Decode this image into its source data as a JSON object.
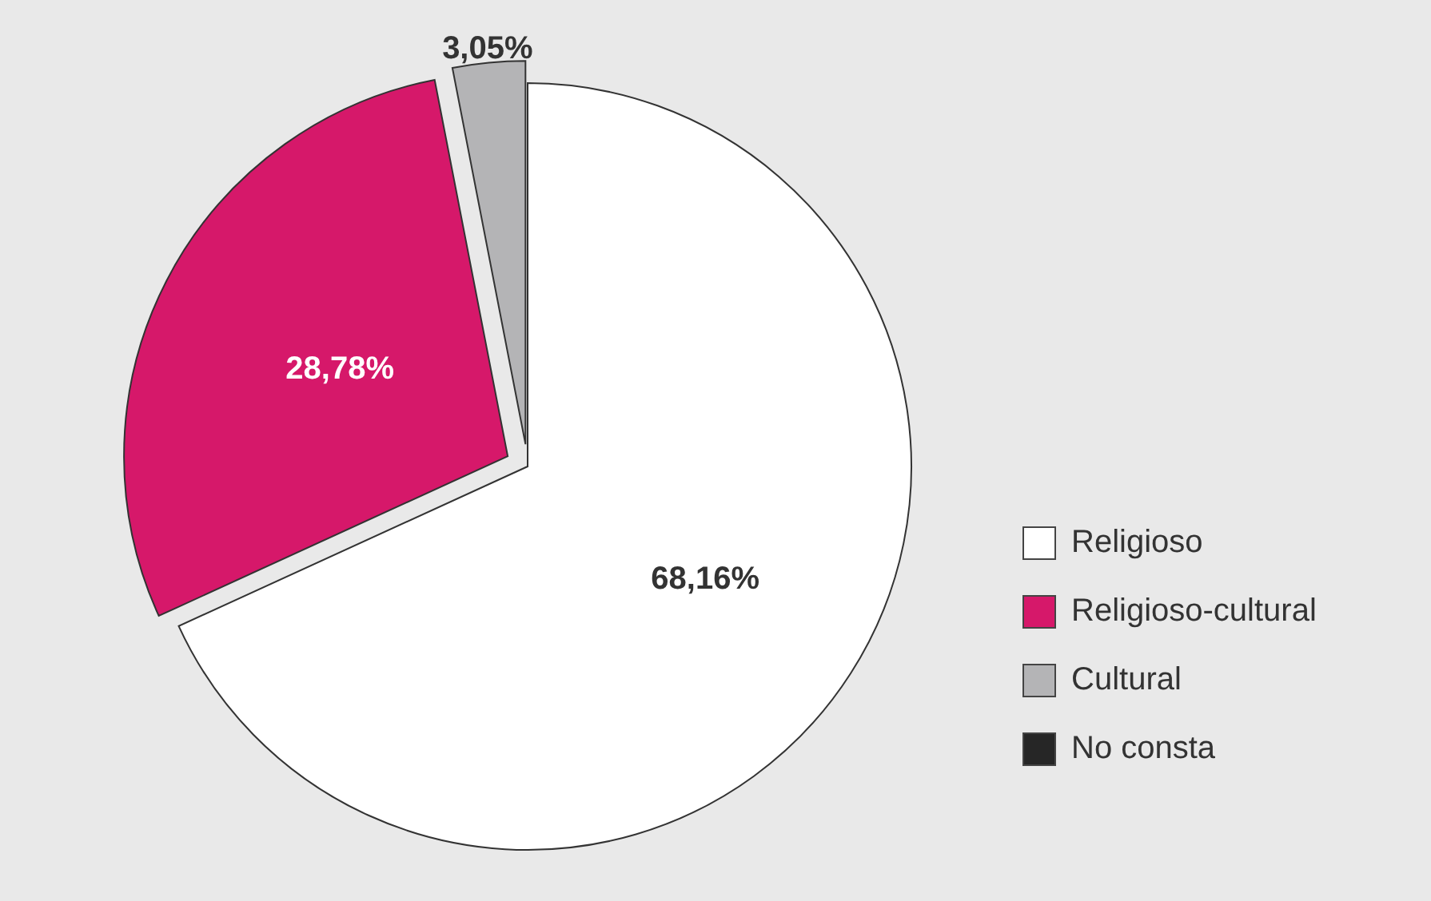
{
  "chart_data": {
    "type": "pie",
    "categories": [
      "Religioso",
      "Religioso-cultural",
      "Cultural",
      "No consta"
    ],
    "values": [
      68.16,
      28.78,
      3.05,
      0
    ],
    "colors": [
      "#ffffff",
      "#d6186a",
      "#b4b4b6",
      "#262626"
    ],
    "value_labels": [
      "68,16%",
      "28,78%",
      "3,05%",
      null
    ],
    "legend": "bottom right"
  }
}
